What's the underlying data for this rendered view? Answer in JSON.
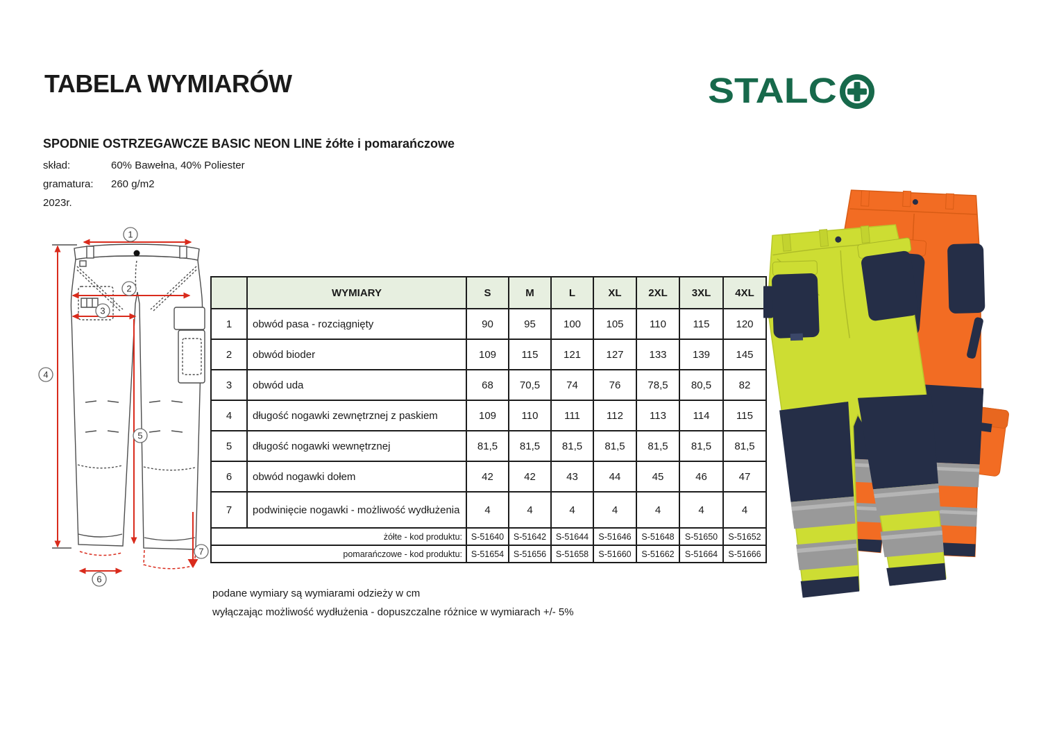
{
  "header": {
    "title": "TABELA WYMIARÓW",
    "logo_text": "STALC",
    "logo_name": "STALCO",
    "logo_plus_icon": "plus-in-circle"
  },
  "product": {
    "name": "SPODNIE OSTRZEGAWCZE BASIC NEON LINE żółte i pomarańczowe",
    "specs": [
      {
        "label": "skład:",
        "value": "60% Bawełna, 40% Poliester"
      },
      {
        "label": "gramatura:",
        "value": "260 g/m2"
      },
      {
        "label": "2023r.",
        "value": ""
      }
    ]
  },
  "table": {
    "dimension_header": "WYMIARY",
    "sizes": [
      "S",
      "M",
      "L",
      "XL",
      "2XL",
      "3XL",
      "4XL"
    ],
    "rows": [
      {
        "no": "1",
        "label": "obwód pasa - rozciągnięty",
        "values": [
          "90",
          "95",
          "100",
          "105",
          "110",
          "115",
          "120"
        ]
      },
      {
        "no": "2",
        "label": "obwód bioder",
        "values": [
          "109",
          "115",
          "121",
          "127",
          "133",
          "139",
          "145"
        ]
      },
      {
        "no": "3",
        "label": "obwód uda",
        "values": [
          "68",
          "70,5",
          "74",
          "76",
          "78,5",
          "80,5",
          "82"
        ]
      },
      {
        "no": "4",
        "label": "długość nogawki zewnętrznej z paskiem",
        "values": [
          "109",
          "110",
          "111",
          "112",
          "113",
          "114",
          "115"
        ]
      },
      {
        "no": "5",
        "label": "długość nogawki wewnętrznej",
        "values": [
          "81,5",
          "81,5",
          "81,5",
          "81,5",
          "81,5",
          "81,5",
          "81,5"
        ]
      },
      {
        "no": "6",
        "label": "obwód nogawki dołem",
        "values": [
          "42",
          "42",
          "43",
          "44",
          "45",
          "46",
          "47"
        ]
      },
      {
        "no": "7",
        "label": "podwinięcie nogawki - możliwość wydłużenia",
        "values": [
          "4",
          "4",
          "4",
          "4",
          "4",
          "4",
          "4"
        ],
        "tall": true
      }
    ],
    "code_rows": [
      {
        "label": "żółte - kod produktu:",
        "codes": [
          "S-51640",
          "S-51642",
          "S-51644",
          "S-51646",
          "S-51648",
          "S-51650",
          "S-51652"
        ]
      },
      {
        "label": "pomarańczowe - kod produktu:",
        "codes": [
          "S-51654",
          "S-51656",
          "S-51658",
          "S-51660",
          "S-51662",
          "S-51664",
          "S-51666"
        ]
      }
    ]
  },
  "notes": {
    "line1": "podane wymiary są wymiarami odzieży w cm",
    "line2": "wyłączając możliwość wydłużenia - dopuszczalne różnice w wymiarach +/- 5%"
  },
  "diagram": {
    "markers": [
      "1",
      "2",
      "3",
      "4",
      "5",
      "6",
      "7"
    ]
  },
  "colors": {
    "logo_green": "#17694b",
    "table_header_bg": "#e7efe0",
    "dimension_red": "#d92b1c",
    "hi_vis_yellow": "#cddd33",
    "hi_vis_orange": "#f26c23",
    "navy": "#252e47",
    "reflective_gray": "#999999"
  }
}
